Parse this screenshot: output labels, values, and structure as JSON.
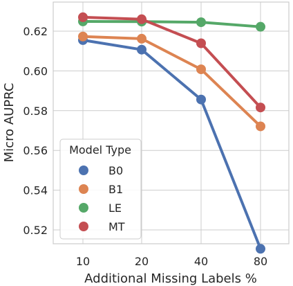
{
  "chart_data": {
    "type": "line",
    "xlabel": "Additional Missing Labels %",
    "ylabel": "Micro AUPRC",
    "categories": [
      "10",
      "20",
      "40",
      "80"
    ],
    "ylim": [
      0.503,
      0.635
    ],
    "yticks": [
      "0.52",
      "0.54",
      "0.56",
      "0.58",
      "0.60",
      "0.62"
    ],
    "ytick_values": [
      0.52,
      0.54,
      0.56,
      0.58,
      0.6,
      0.62
    ],
    "grid": true,
    "legend": {
      "title": "Model Type",
      "placement": "lower-left"
    },
    "series": [
      {
        "name": "B0",
        "color": "#4c72b0",
        "values": [
          0.6155,
          0.6107,
          0.5856,
          0.5105
        ]
      },
      {
        "name": "B1",
        "color": "#dd8452",
        "values": [
          0.6173,
          0.6162,
          0.6008,
          0.5721
        ]
      },
      {
        "name": "LE",
        "color": "#55a868",
        "values": [
          0.6249,
          0.6248,
          0.6245,
          0.6222
        ]
      },
      {
        "name": "MT",
        "color": "#c44e52",
        "values": [
          0.627,
          0.626,
          0.6139,
          0.5816
        ]
      }
    ]
  }
}
